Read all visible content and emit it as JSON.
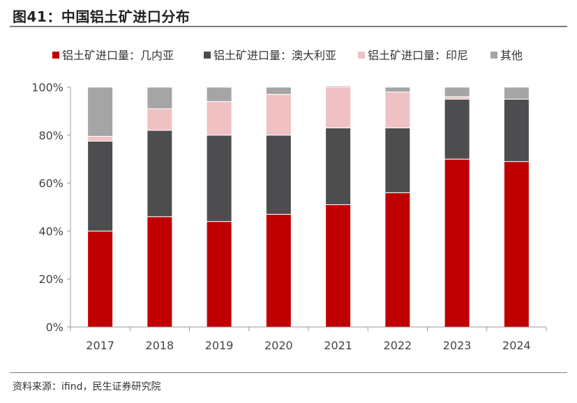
{
  "header": {
    "title": "图41：中国铝土矿进口分布"
  },
  "footer": {
    "source": "资料来源：ifind，民生证券研究院"
  },
  "chart_data": {
    "type": "bar",
    "stacked": true,
    "categories": [
      "2017",
      "2018",
      "2019",
      "2020",
      "2021",
      "2022",
      "2023",
      "2024"
    ],
    "ylim": [
      0,
      100
    ],
    "yticks": [
      "0%",
      "20%",
      "40%",
      "60%",
      "80%",
      "100%"
    ],
    "legend_position": "top",
    "grid": false,
    "series": [
      {
        "name": "铝土矿进口量：几内亚",
        "color": "#C00000",
        "values": [
          40,
          46,
          44,
          47,
          51,
          56,
          70,
          69
        ]
      },
      {
        "name": "铝土矿进口量：澳大利亚",
        "color": "#4D4D4F",
        "values": [
          37.5,
          36,
          36,
          33,
          32,
          27,
          25,
          26
        ]
      },
      {
        "name": "铝土矿进口量：印尼",
        "color": "#EFC1C3",
        "values": [
          2,
          9,
          14,
          17,
          17,
          15,
          1,
          0
        ]
      },
      {
        "name": "其他",
        "color": "#A5A5A5",
        "values": [
          20.5,
          9,
          6,
          3,
          0.5,
          2,
          4,
          5
        ]
      }
    ]
  }
}
